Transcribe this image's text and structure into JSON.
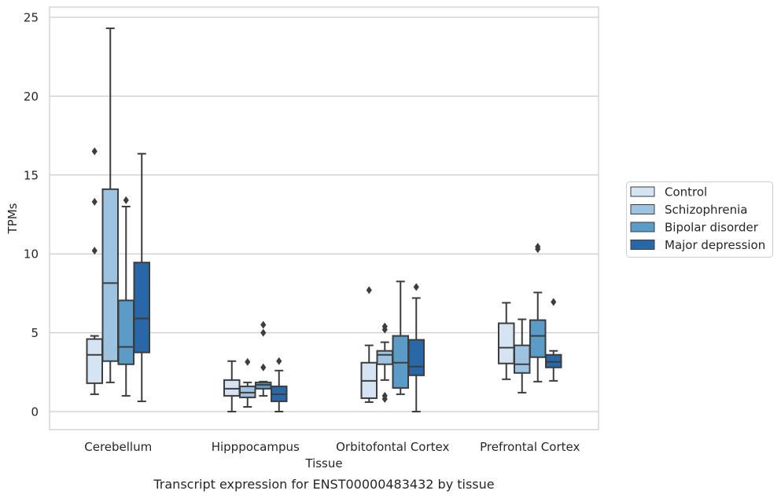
{
  "chart_data": {
    "type": "box",
    "title": "Transcript expression for ENST00000483432 by tissue",
    "xlabel": "Tissue",
    "ylabel": "TPMs",
    "ylim": [
      -1.1,
      25.6
    ],
    "yticks": [
      0,
      5,
      10,
      15,
      20,
      25
    ],
    "grid": true,
    "legend_position": "right",
    "categories": [
      "Cerebellum",
      "Hipppocampus",
      "Orbitofontal Cortex",
      "Prefrontal Cortex"
    ],
    "series": [
      {
        "name": "Control",
        "color": "#d4e4f2",
        "boxes": [
          {
            "whislo": 1.1,
            "q1": 1.8,
            "med": 3.6,
            "q3": 4.6,
            "whishi": 4.8,
            "fliers": [
              10.2,
              13.3,
              16.5
            ]
          },
          {
            "whislo": 0.0,
            "q1": 1.0,
            "med": 1.45,
            "q3": 2.0,
            "whishi": 3.2,
            "fliers": []
          },
          {
            "whislo": 0.6,
            "q1": 0.85,
            "med": 1.95,
            "q3": 3.1,
            "whishi": 4.2,
            "fliers": [
              7.7
            ]
          },
          {
            "whislo": 2.05,
            "q1": 3.05,
            "med": 4.05,
            "q3": 5.6,
            "whishi": 6.9,
            "fliers": []
          }
        ]
      },
      {
        "name": "Schizophrenia",
        "color": "#9dc3e0",
        "boxes": [
          {
            "whislo": 1.85,
            "q1": 3.2,
            "med": 8.15,
            "q3": 14.1,
            "whishi": 24.3,
            "fliers": []
          },
          {
            "whislo": 0.3,
            "q1": 0.9,
            "med": 1.2,
            "q3": 1.6,
            "whishi": 1.85,
            "fliers": [
              3.15
            ]
          },
          {
            "whislo": 2.0,
            "q1": 3.0,
            "med": 3.6,
            "q3": 3.85,
            "whishi": 4.4,
            "fliers": [
              0.8,
              1.0,
              5.2,
              5.4
            ]
          },
          {
            "whislo": 1.2,
            "q1": 2.45,
            "med": 3.0,
            "q3": 4.2,
            "whishi": 5.85,
            "fliers": []
          }
        ]
      },
      {
        "name": "Bipolar disorder",
        "color": "#5b9bc8",
        "boxes": [
          {
            "whislo": 1.0,
            "q1": 3.0,
            "med": 4.1,
            "q3": 7.05,
            "whishi": 13.0,
            "fliers": [
              13.4
            ]
          },
          {
            "whislo": 1.0,
            "q1": 1.45,
            "med": 1.7,
            "q3": 1.85,
            "whishi": 1.9,
            "fliers": [
              2.8,
              5.0,
              5.5
            ]
          },
          {
            "whislo": 1.1,
            "q1": 1.5,
            "med": 3.1,
            "q3": 4.8,
            "whishi": 8.25,
            "fliers": []
          },
          {
            "whislo": 1.9,
            "q1": 3.45,
            "med": 4.8,
            "q3": 5.8,
            "whishi": 7.55,
            "fliers": [
              10.3,
              10.45
            ]
          }
        ]
      },
      {
        "name": "Major depression",
        "color": "#2867a8",
        "boxes": [
          {
            "whislo": 0.65,
            "q1": 3.75,
            "med": 5.9,
            "q3": 9.45,
            "whishi": 16.35,
            "fliers": []
          },
          {
            "whislo": 0.0,
            "q1": 0.65,
            "med": 1.1,
            "q3": 1.6,
            "whishi": 2.6,
            "fliers": [
              3.2
            ]
          },
          {
            "whislo": 0.0,
            "q1": 2.3,
            "med": 2.85,
            "q3": 4.55,
            "whishi": 7.2,
            "fliers": [
              7.9
            ]
          },
          {
            "whislo": 1.95,
            "q1": 2.8,
            "med": 3.15,
            "q3": 3.6,
            "whishi": 3.85,
            "fliers": [
              6.95
            ]
          }
        ]
      }
    ]
  }
}
